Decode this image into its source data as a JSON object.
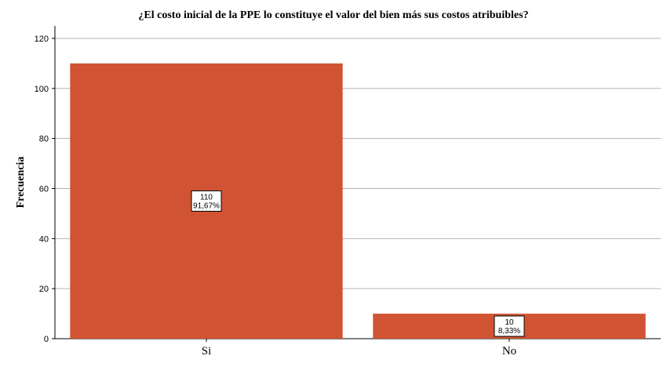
{
  "chart_data": {
    "type": "bar",
    "title": "¿El costo inicial de la PPE lo constituye el valor del bien más sus costos atribuibles?",
    "xlabel": "",
    "ylabel": "Frecuencia",
    "categories": [
      "Si",
      "No"
    ],
    "values": [
      110,
      10
    ],
    "value_labels": [
      "110",
      "10"
    ],
    "percent_labels": [
      "91,67%",
      "8,33%"
    ],
    "ylim": [
      0,
      125
    ],
    "yticks": [
      0,
      20,
      40,
      60,
      80,
      100,
      120
    ],
    "grid": true,
    "legend": "none",
    "bar_color": "#d05434",
    "grid_color": "#b3b3b3"
  }
}
